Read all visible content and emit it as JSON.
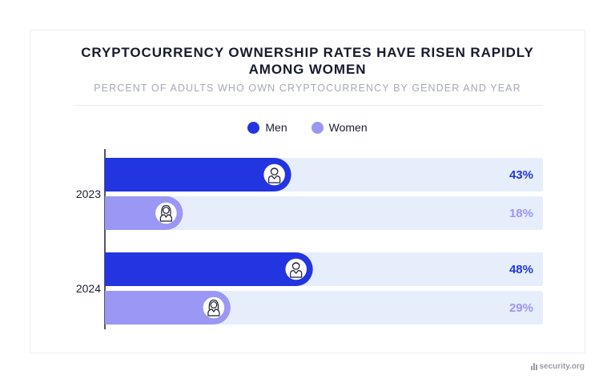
{
  "header": {
    "title": "CRYPTOCURRENCY OWNERSHIP RATES HAVE RISEN RAPIDLY AMONG WOMEN",
    "subtitle": "PERCENT OF ADULTS WHO OWN CRYPTOCURRENCY BY GENDER AND YEAR"
  },
  "legend": [
    {
      "label": "Men",
      "color": "#2335e0"
    },
    {
      "label": "Women",
      "color": "#9b97f5"
    }
  ],
  "chart_data": {
    "type": "bar",
    "orientation": "horizontal",
    "categories": [
      "2023",
      "2024"
    ],
    "series": [
      {
        "name": "Men",
        "values": [
          43,
          48
        ],
        "labels": [
          "43%",
          "48%"
        ],
        "color": "#2335e0",
        "icon": "man-icon"
      },
      {
        "name": "Women",
        "values": [
          18,
          29
        ],
        "labels": [
          "18%",
          "29%"
        ],
        "color": "#9b97f5",
        "icon": "woman-icon"
      }
    ],
    "track_color": "#e6eefb",
    "xlim": [
      0,
      100
    ],
    "grid": false,
    "legend_position": "top-center"
  },
  "watermark": "security.org"
}
